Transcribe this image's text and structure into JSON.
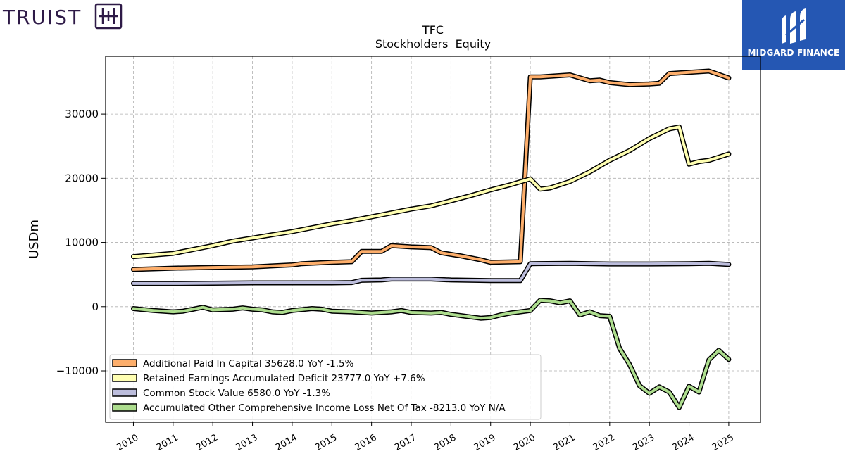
{
  "branding": {
    "truist_label": "TRUIST",
    "midgard_label": "MIDGARD FINANCE"
  },
  "chart_data": {
    "type": "line",
    "title": "TFC",
    "subtitle": "Stockholders  Equity",
    "xlabel": "",
    "ylabel": "USDm",
    "xlim": [
      2009.3,
      2025.8
    ],
    "ylim": [
      -18000,
      39000
    ],
    "yticks": [
      -10000,
      0,
      10000,
      20000,
      30000
    ],
    "ytick_labels": [
      "−10000",
      "0",
      "10000",
      "20000",
      "30000"
    ],
    "xticks": [
      2010,
      2011,
      2012,
      2013,
      2014,
      2015,
      2016,
      2017,
      2018,
      2019,
      2020,
      2021,
      2022,
      2023,
      2024,
      2025
    ],
    "xtick_labels": [
      "2010",
      "2011",
      "2012",
      "2013",
      "2014",
      "2015",
      "2016",
      "2017",
      "2018",
      "2019",
      "2020",
      "2021",
      "2022",
      "2023",
      "2024",
      "2025"
    ],
    "grid": true,
    "legend_position": "lower-left",
    "series": [
      {
        "name": "Additional Paid In Capital",
        "legend": "Additional Paid In Capital  35628.0 YoY -1.5%",
        "color": "#fdae6b",
        "points": [
          [
            2010.0,
            5800
          ],
          [
            2011.0,
            6000
          ],
          [
            2012.0,
            6100
          ],
          [
            2013.0,
            6200
          ],
          [
            2014.0,
            6500
          ],
          [
            2014.25,
            6700
          ],
          [
            2015.0,
            6900
          ],
          [
            2015.5,
            7000
          ],
          [
            2015.75,
            8600
          ],
          [
            2016.25,
            8600
          ],
          [
            2016.5,
            9500
          ],
          [
            2017.0,
            9300
          ],
          [
            2017.5,
            9200
          ],
          [
            2017.75,
            8400
          ],
          [
            2018.25,
            7900
          ],
          [
            2018.75,
            7300
          ],
          [
            2019.0,
            6900
          ],
          [
            2019.75,
            7000
          ],
          [
            2020.0,
            35800
          ],
          [
            2020.25,
            35800
          ],
          [
            2021.0,
            36100
          ],
          [
            2021.5,
            35200
          ],
          [
            2021.75,
            35300
          ],
          [
            2022.0,
            34900
          ],
          [
            2022.5,
            34600
          ],
          [
            2023.0,
            34700
          ],
          [
            2023.25,
            34800
          ],
          [
            2023.5,
            36300
          ],
          [
            2024.0,
            36500
          ],
          [
            2024.5,
            36700
          ],
          [
            2025.0,
            35628
          ]
        ]
      },
      {
        "name": "Retained Earnings Accumulated Deficit",
        "legend": "Retained Earnings Accumulated Deficit  23777.0 YoY +7.6%",
        "color": "#ffffb2",
        "points": [
          [
            2010.0,
            7800
          ],
          [
            2011.0,
            8300
          ],
          [
            2011.5,
            8900
          ],
          [
            2012.0,
            9500
          ],
          [
            2012.5,
            10200
          ],
          [
            2013.0,
            10700
          ],
          [
            2013.5,
            11200
          ],
          [
            2014.0,
            11700
          ],
          [
            2014.5,
            12300
          ],
          [
            2015.0,
            12900
          ],
          [
            2015.5,
            13400
          ],
          [
            2016.0,
            14000
          ],
          [
            2016.5,
            14600
          ],
          [
            2017.0,
            15200
          ],
          [
            2017.5,
            15700
          ],
          [
            2018.0,
            16500
          ],
          [
            2018.5,
            17300
          ],
          [
            2019.0,
            18200
          ],
          [
            2019.5,
            19000
          ],
          [
            2020.0,
            19900
          ],
          [
            2020.25,
            18300
          ],
          [
            2020.5,
            18500
          ],
          [
            2021.0,
            19500
          ],
          [
            2021.5,
            21000
          ],
          [
            2022.0,
            22800
          ],
          [
            2022.5,
            24300
          ],
          [
            2023.0,
            26200
          ],
          [
            2023.5,
            27700
          ],
          [
            2023.75,
            28000
          ],
          [
            2024.0,
            22200
          ],
          [
            2024.25,
            22600
          ],
          [
            2024.5,
            22800
          ],
          [
            2025.0,
            23777
          ]
        ]
      },
      {
        "name": "Common Stock Value",
        "legend": "Common Stock Value  6580.0 YoY -1.3%",
        "color": "#bcbddc",
        "points": [
          [
            2010.0,
            3600
          ],
          [
            2011.0,
            3600
          ],
          [
            2012.0,
            3650
          ],
          [
            2013.0,
            3700
          ],
          [
            2014.0,
            3700
          ],
          [
            2015.0,
            3700
          ],
          [
            2015.5,
            3750
          ],
          [
            2015.75,
            4100
          ],
          [
            2016.25,
            4150
          ],
          [
            2016.5,
            4300
          ],
          [
            2017.0,
            4300
          ],
          [
            2017.5,
            4300
          ],
          [
            2018.0,
            4150
          ],
          [
            2019.0,
            4050
          ],
          [
            2019.75,
            4050
          ],
          [
            2020.0,
            6700
          ],
          [
            2021.0,
            6750
          ],
          [
            2022.0,
            6650
          ],
          [
            2023.0,
            6650
          ],
          [
            2024.0,
            6700
          ],
          [
            2024.5,
            6750
          ],
          [
            2025.0,
            6580
          ]
        ]
      },
      {
        "name": "Accumulated Other Comprehensive Income Loss Net Of Tax",
        "legend": "Accumulated Other Comprehensive Income Loss Net Of Tax  -8213.0 YoY N/A",
        "color": "#addd8e",
        "points": [
          [
            2010.0,
            -300
          ],
          [
            2010.5,
            -600
          ],
          [
            2011.0,
            -800
          ],
          [
            2011.25,
            -700
          ],
          [
            2011.5,
            -400
          ],
          [
            2011.75,
            -100
          ],
          [
            2012.0,
            -500
          ],
          [
            2012.5,
            -400
          ],
          [
            2012.75,
            -200
          ],
          [
            2013.0,
            -400
          ],
          [
            2013.25,
            -500
          ],
          [
            2013.5,
            -800
          ],
          [
            2013.75,
            -900
          ],
          [
            2014.0,
            -600
          ],
          [
            2014.5,
            -300
          ],
          [
            2014.75,
            -400
          ],
          [
            2015.0,
            -700
          ],
          [
            2015.5,
            -800
          ],
          [
            2016.0,
            -1000
          ],
          [
            2016.5,
            -800
          ],
          [
            2016.75,
            -600
          ],
          [
            2017.0,
            -900
          ],
          [
            2017.5,
            -1000
          ],
          [
            2017.75,
            -900
          ],
          [
            2018.0,
            -1200
          ],
          [
            2018.5,
            -1600
          ],
          [
            2018.75,
            -1800
          ],
          [
            2019.0,
            -1700
          ],
          [
            2019.25,
            -1300
          ],
          [
            2019.5,
            -1000
          ],
          [
            2020.0,
            -600
          ],
          [
            2020.25,
            1000
          ],
          [
            2020.5,
            900
          ],
          [
            2020.75,
            600
          ],
          [
            2021.0,
            900
          ],
          [
            2021.25,
            -1300
          ],
          [
            2021.5,
            -800
          ],
          [
            2021.75,
            -1400
          ],
          [
            2022.0,
            -1500
          ],
          [
            2022.25,
            -6500
          ],
          [
            2022.5,
            -9000
          ],
          [
            2022.75,
            -12300
          ],
          [
            2023.0,
            -13500
          ],
          [
            2023.25,
            -12500
          ],
          [
            2023.5,
            -13300
          ],
          [
            2023.75,
            -15700
          ],
          [
            2024.0,
            -12400
          ],
          [
            2024.25,
            -13300
          ],
          [
            2024.5,
            -8300
          ],
          [
            2024.75,
            -6800
          ],
          [
            2025.0,
            -8213
          ]
        ]
      }
    ]
  }
}
